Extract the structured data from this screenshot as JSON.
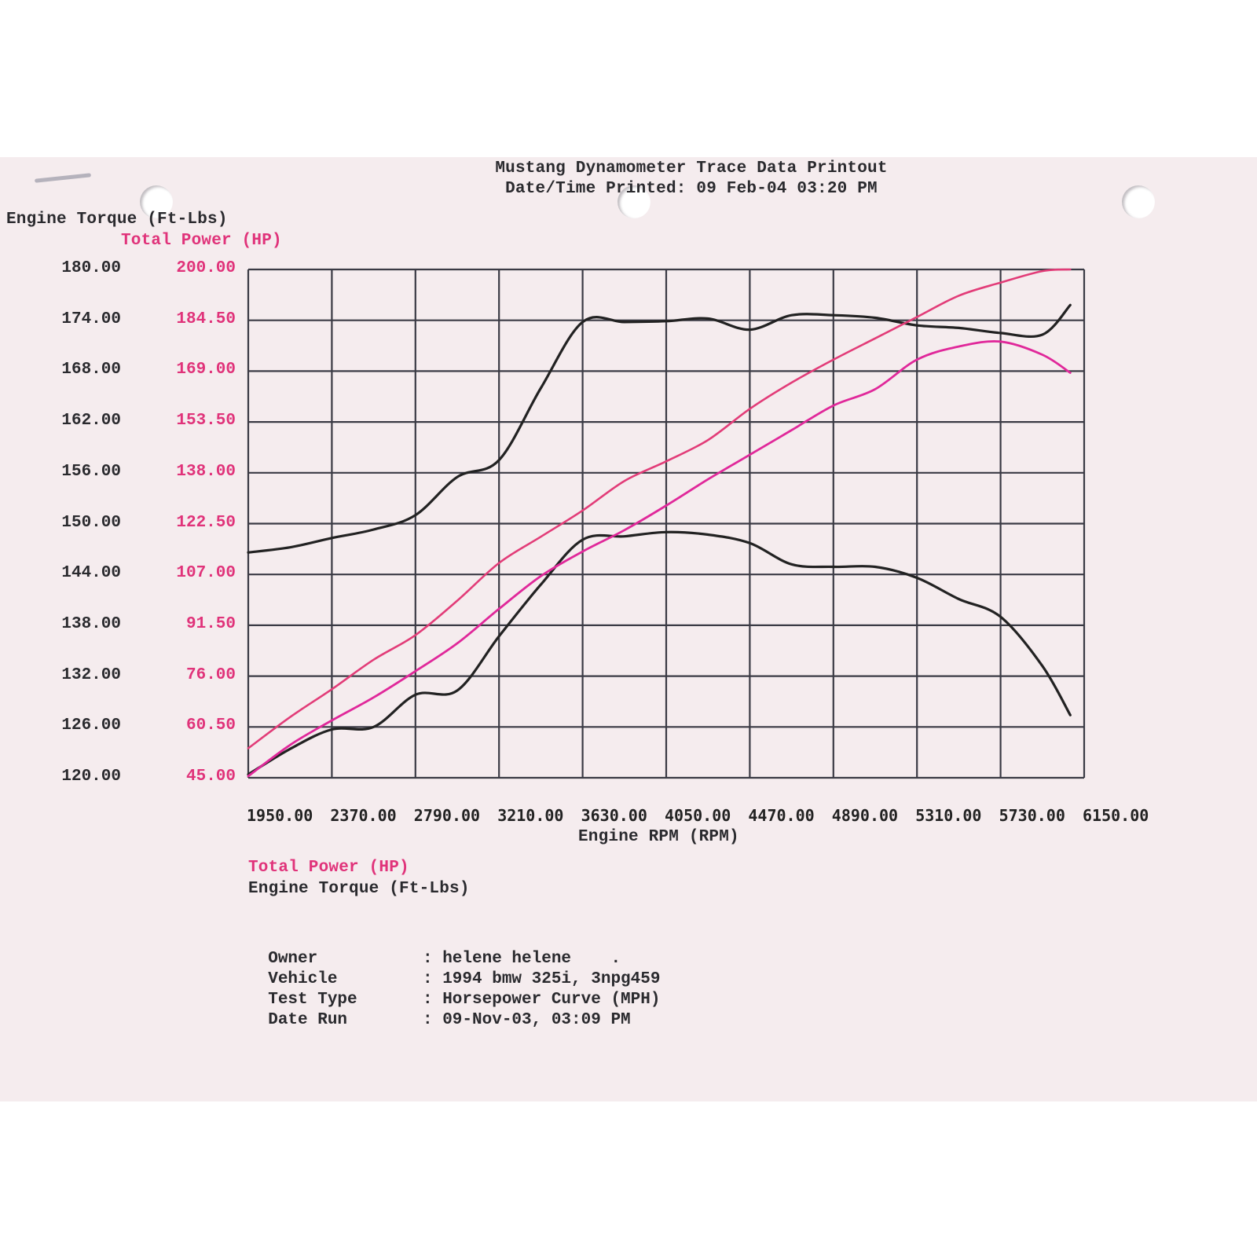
{
  "document": {
    "title": "Mustang Dynamometer Trace Data Printout",
    "printed_line": "Date/Time Printed: 09 Feb-04 03:20 PM",
    "left_axis_label": "Engine Torque (Ft-Lbs)",
    "right_axis_label": "Total Power (HP)",
    "x_axis_label": "Engine RPM (RPM)",
    "legend": [
      {
        "label": "Total Power (HP)",
        "color": "#e0337a"
      },
      {
        "label": "Engine Torque (Ft-Lbs)",
        "color": "#222222"
      }
    ],
    "info": [
      {
        "key": "Owner",
        "value": ": helene helene    ."
      },
      {
        "key": "Vehicle",
        "value": ": 1994 bmw 325i, 3npg459"
      },
      {
        "key": "Test Type",
        "value": ": Horsepower Curve (MPH)"
      },
      {
        "key": "Date Run",
        "value": ": 09-Nov-03, 03:09 PM"
      }
    ]
  },
  "axes": {
    "torque_ticks": [
      "180.00",
      "174.00",
      "168.00",
      "162.00",
      "156.00",
      "150.00",
      "144.00",
      "138.00",
      "132.00",
      "126.00",
      "120.00"
    ],
    "power_ticks": [
      "200.00",
      "184.50",
      "169.00",
      "153.50",
      "138.00",
      "122.50",
      "107.00",
      "91.50",
      "76.00",
      "60.50",
      "45.00"
    ],
    "rpm_ticks": [
      "1950.00",
      "2370.00",
      "2790.00",
      "3210.00",
      "3630.00",
      "4050.00",
      "4470.00",
      "4890.00",
      "5310.00",
      "5730.00",
      "6150.00"
    ]
  },
  "colors": {
    "torque": "#222222",
    "power_run1": "#e23c78",
    "power_run2": "#e0289a",
    "grid": "#3a3a44",
    "paper": "#f5ecee"
  },
  "chart_data": {
    "type": "line",
    "title": "Mustang Dynamometer Trace Data Printout",
    "subtitle": "Date/Time Printed: 09 Feb-04 03:20 PM",
    "xlabel": "Engine RPM (RPM)",
    "ylabel": "Engine Torque (Ft-Lbs)",
    "ylabel_right": "Total Power (HP)",
    "xlim": [
      1950,
      6150
    ],
    "ylim": [
      120,
      180
    ],
    "ylim_right": [
      45,
      200
    ],
    "grid": true,
    "legend_position": "below",
    "x": [
      1950,
      2160,
      2370,
      2580,
      2790,
      3000,
      3210,
      3420,
      3630,
      3840,
      4050,
      4260,
      4470,
      4680,
      4890,
      5100,
      5310,
      5520,
      5730,
      5940,
      6080
    ],
    "series": [
      {
        "name": "Engine Torque (Ft-Lbs) - run 1",
        "axis": "left",
        "values": [
          146.6,
          147.2,
          148.3,
          149.3,
          151.0,
          155.5,
          157.5,
          166.0,
          173.8,
          173.8,
          173.9,
          174.2,
          172.9,
          174.6,
          174.6,
          174.3,
          173.4,
          173.1,
          172.5,
          172.3,
          175.8
        ]
      },
      {
        "name": "Total Power (HP) - run 1",
        "axis": "right",
        "values": [
          54.0,
          63.5,
          72.0,
          81.0,
          88.5,
          99.0,
          110.5,
          118.5,
          126.5,
          135.5,
          141.5,
          148.0,
          157.5,
          165.5,
          172.5,
          179.0,
          185.5,
          192.0,
          196.0,
          199.5,
          200.0
        ]
      },
      {
        "name": "Engine Torque (Ft-Lbs) - run 2",
        "axis": "left",
        "values": [
          120.4,
          123.4,
          125.7,
          126.0,
          129.8,
          130.3,
          136.7,
          142.8,
          148.1,
          148.5,
          149.0,
          148.7,
          147.7,
          145.2,
          144.9,
          144.9,
          143.6,
          141.1,
          139.0,
          133.2,
          127.4
        ]
      },
      {
        "name": "Total Power (HP) - run 2",
        "axis": "right",
        "values": [
          45.5,
          55.0,
          62.5,
          69.5,
          77.5,
          86.0,
          96.5,
          106.5,
          114.0,
          120.5,
          128.0,
          136.0,
          143.5,
          151.0,
          158.5,
          163.5,
          172.5,
          176.5,
          178.0,
          174.0,
          168.5
        ]
      }
    ]
  }
}
